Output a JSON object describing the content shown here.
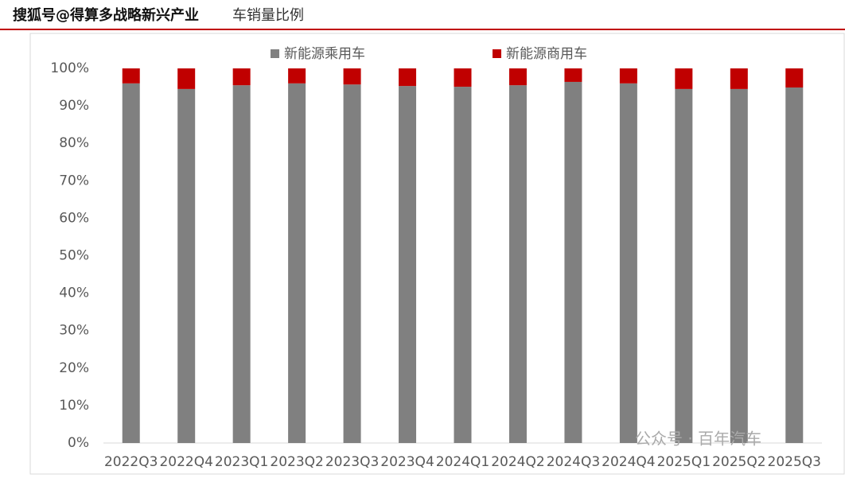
{
  "chart_data": {
    "type": "stacked_bar",
    "watermark": "搜狐号@得算多战略新兴产业",
    "title": "车销量比例",
    "footer_watermark": "公众号 · 百年汽车",
    "categories": [
      "2022Q3",
      "2022Q4",
      "2023Q1",
      "2023Q2",
      "2023Q3",
      "2023Q4",
      "2024Q1",
      "2024Q2",
      "2024Q3",
      "2024Q4",
      "2025Q1",
      "2025Q2",
      "2025Q3"
    ],
    "series": [
      {
        "name": "新能源乘用车",
        "color": "#808080",
        "values": [
          96.0,
          94.5,
          95.5,
          96.0,
          95.7,
          95.3,
          95.1,
          95.5,
          96.4,
          96.0,
          94.5,
          94.5,
          94.9
        ]
      },
      {
        "name": "新能源商用车",
        "color": "#c00000",
        "values": [
          4.0,
          5.5,
          4.5,
          4.0,
          4.3,
          4.7,
          4.9,
          4.5,
          3.6,
          4.0,
          5.5,
          5.5,
          5.1
        ]
      }
    ],
    "ylim": [
      0,
      100
    ],
    "yticks": [
      {
        "value": 0,
        "label": "0%"
      },
      {
        "value": 10,
        "label": "10%"
      },
      {
        "value": 20,
        "label": "20%"
      },
      {
        "value": 30,
        "label": "30%"
      },
      {
        "value": 40,
        "label": "40%"
      },
      {
        "value": 50,
        "label": "50%"
      },
      {
        "value": 60,
        "label": "60%"
      },
      {
        "value": 70,
        "label": "70%"
      },
      {
        "value": 80,
        "label": "80%"
      },
      {
        "value": 90,
        "label": "90%"
      },
      {
        "value": 100,
        "label": "100%"
      }
    ],
    "legend": "top"
  }
}
